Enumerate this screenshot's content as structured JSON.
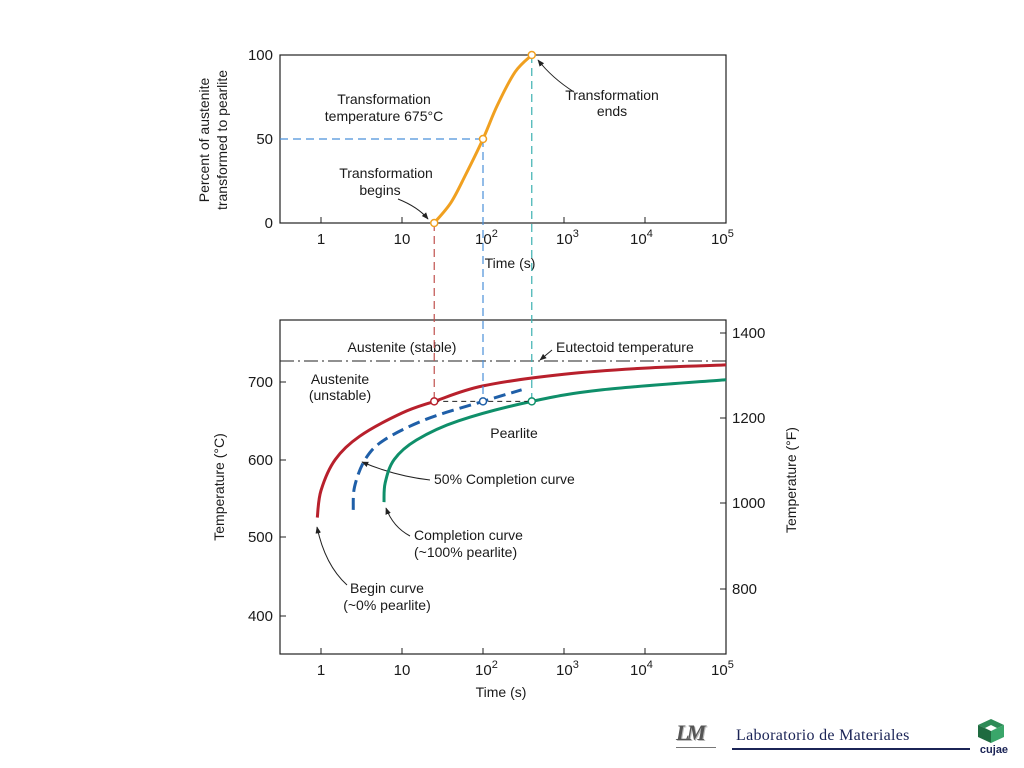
{
  "top_chart": {
    "ylabel_line1": "Percent of austenite",
    "ylabel_line2": "transformed to pearlite",
    "xlabel": "Time (s)",
    "y_ticks": [
      "0",
      "50",
      "100"
    ],
    "x_tick_1": "1",
    "x_tick_10": "10",
    "x_tick_base": "10",
    "x_exp_2": "2",
    "x_exp_3": "3",
    "x_exp_4": "4",
    "x_exp_5": "5",
    "note_temp_line1": "Transformation",
    "note_temp_line2": "temperature 675°C",
    "note_begins_line1": "Transformation",
    "note_begins_line2": "begins",
    "note_ends_line1": "Transformation",
    "note_ends_line2": "ends"
  },
  "bottom_chart": {
    "ylabel_left": "Temperature (°C)",
    "ylabel_right": "Temperature (°F)",
    "xlabel": "Time (s)",
    "y_ticks_c": [
      "400",
      "500",
      "600",
      "700"
    ],
    "y_ticks_f": [
      "800",
      "1000",
      "1200",
      "1400"
    ],
    "x_tick_1": "1",
    "x_tick_10": "10",
    "x_tick_base": "10",
    "x_exp_2": "2",
    "x_exp_3": "3",
    "x_exp_4": "4",
    "x_exp_5": "5",
    "label_austenite_stable": "Austenite (stable)",
    "label_eutectoid": "Eutectoid temperature",
    "label_austenite_unstable_line1": "Austenite",
    "label_austenite_unstable_line2": "(unstable)",
    "label_pearlite": "Pearlite",
    "label_50": "50% Completion curve",
    "label_completion_line1": "Completion curve",
    "label_completion_line2": "(~100% pearlite)",
    "label_begin_line1": "Begin curve",
    "label_begin_line2": "(~0% pearlite)"
  },
  "chart_data": [
    {
      "type": "line",
      "title": "",
      "xlabel": "Time (s)",
      "ylabel": "Percent of austenite transformed to pearlite",
      "xscale": "log",
      "xlim": [
        0.3,
        100000
      ],
      "ylim": [
        0,
        100
      ],
      "series": [
        {
          "color": "#f0a020",
          "x": [
            25,
            40,
            60,
            100,
            150,
            250,
            400
          ],
          "y": [
            0,
            12,
            28,
            50,
            70,
            90,
            100
          ]
        }
      ],
      "markers": [
        {
          "x": 25,
          "y": 0
        },
        {
          "x": 100,
          "y": 50
        },
        {
          "x": 400,
          "y": 100
        }
      ]
    },
    {
      "type": "line",
      "title": "",
      "xlabel": "Time (s)",
      "ylabel": "Temperature (°C)",
      "ylabel_right": "Temperature (°F)",
      "xscale": "log",
      "xlim": [
        0.3,
        100000
      ],
      "ylim": [
        360,
        770
      ],
      "eutectoid_temperature": 727,
      "isotherm": 675,
      "series": [
        {
          "name": "Begin curve (~0% pearlite)",
          "color": "#b8202c",
          "x": [
            0.9,
            1.0,
            1.5,
            3,
            10,
            25,
            100,
            1000,
            10000,
            100000
          ],
          "y": [
            525,
            560,
            600,
            630,
            660,
            675,
            695,
            710,
            718,
            722
          ]
        },
        {
          "name": "50% Completion curve",
          "color": "#1f5fa8",
          "x": [
            2.5,
            2.6,
            3.5,
            6,
            20,
            100,
            300
          ],
          "y": [
            535,
            565,
            600,
            625,
            652,
            675,
            690
          ]
        },
        {
          "name": "Completion curve (~100% pearlite)",
          "color": "#0f8f6a",
          "x": [
            6,
            6.2,
            8,
            15,
            50,
            400,
            3000,
            100000
          ],
          "y": [
            545,
            570,
            600,
            625,
            650,
            675,
            690,
            703
          ]
        }
      ],
      "markers": [
        {
          "x": 25,
          "y": 675
        },
        {
          "x": 100,
          "y": 675
        },
        {
          "x": 400,
          "y": 675
        }
      ]
    }
  ],
  "footer": {
    "logo_text": "LM",
    "lab_name": "Laboratorio de Materiales",
    "cujae_text": "cujae"
  }
}
